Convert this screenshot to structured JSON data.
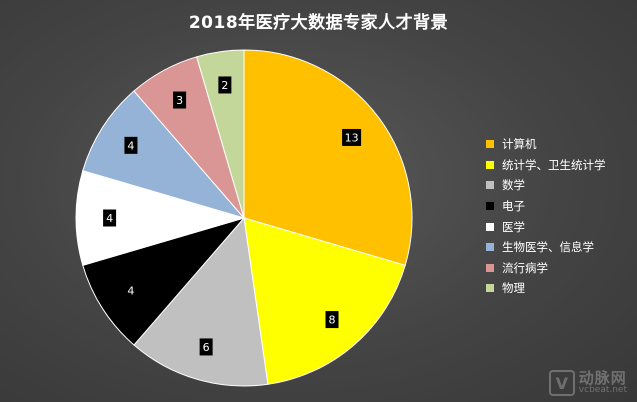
{
  "chart_data": {
    "type": "pie",
    "title": "2018年医疗大数据专家人才背景",
    "categories": [
      "计算机",
      "统计学、卫生统计学",
      "数学",
      "电子",
      "医学",
      "生物医学、信息学",
      "流行病学",
      "物理"
    ],
    "values": [
      13,
      8,
      6,
      4,
      4,
      4,
      3,
      2
    ],
    "colors": [
      "#FFC000",
      "#FFFF00",
      "#C0C0C0",
      "#000000",
      "#FFFFFF",
      "#95B3D7",
      "#DA9694",
      "#C4D79B"
    ],
    "legend_position": "right",
    "data_labels": [
      "13",
      "8",
      "6",
      "4",
      "4",
      "4",
      "3",
      "2"
    ]
  },
  "watermark": {
    "logo": "V",
    "text": "动脉网",
    "sub": "vcbeat.net"
  }
}
